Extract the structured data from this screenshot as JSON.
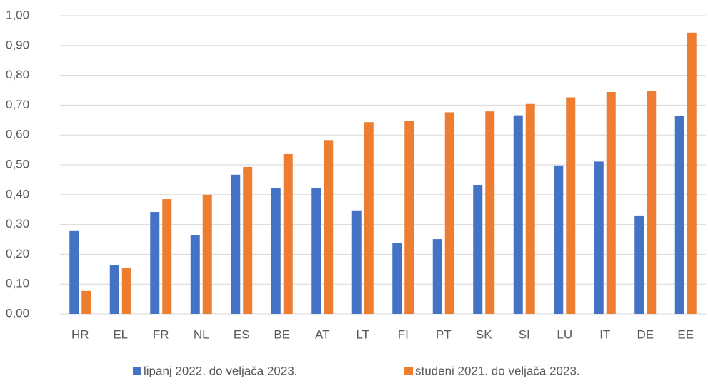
{
  "chart_data": {
    "type": "bar",
    "categories": [
      "HR",
      "EL",
      "FR",
      "NL",
      "ES",
      "BE",
      "AT",
      "LT",
      "FI",
      "PT",
      "SK",
      "SI",
      "LU",
      "IT",
      "DE",
      "EE"
    ],
    "series": [
      {
        "name": "lipanj 2022. do veljača 2023.",
        "color": "#4472c4",
        "values": [
          0.278,
          0.163,
          0.342,
          0.264,
          0.467,
          0.423,
          0.423,
          0.345,
          0.237,
          0.251,
          0.433,
          0.666,
          0.498,
          0.511,
          0.328,
          0.663
        ]
      },
      {
        "name": "studeni 2021. do veljača 2023.",
        "color": "#ed7d31",
        "values": [
          0.077,
          0.155,
          0.385,
          0.4,
          0.493,
          0.536,
          0.583,
          0.643,
          0.648,
          0.676,
          0.679,
          0.704,
          0.726,
          0.744,
          0.747,
          0.943
        ]
      }
    ],
    "ylim": [
      0,
      1
    ],
    "yticks": [
      {
        "value": 0,
        "label": "0,00"
      },
      {
        "value": 0.1,
        "label": "0,10"
      },
      {
        "value": 0.2,
        "label": "0,20"
      },
      {
        "value": 0.3,
        "label": "0,30"
      },
      {
        "value": 0.4,
        "label": "0,40"
      },
      {
        "value": 0.5,
        "label": "0,50"
      },
      {
        "value": 0.6,
        "label": "0,60"
      },
      {
        "value": 0.7,
        "label": "0,70"
      },
      {
        "value": 0.8,
        "label": "0,80"
      },
      {
        "value": 0.9,
        "label": "0,90"
      },
      {
        "value": 1,
        "label": "1,00"
      }
    ],
    "grid": true,
    "legend": "bottom"
  }
}
